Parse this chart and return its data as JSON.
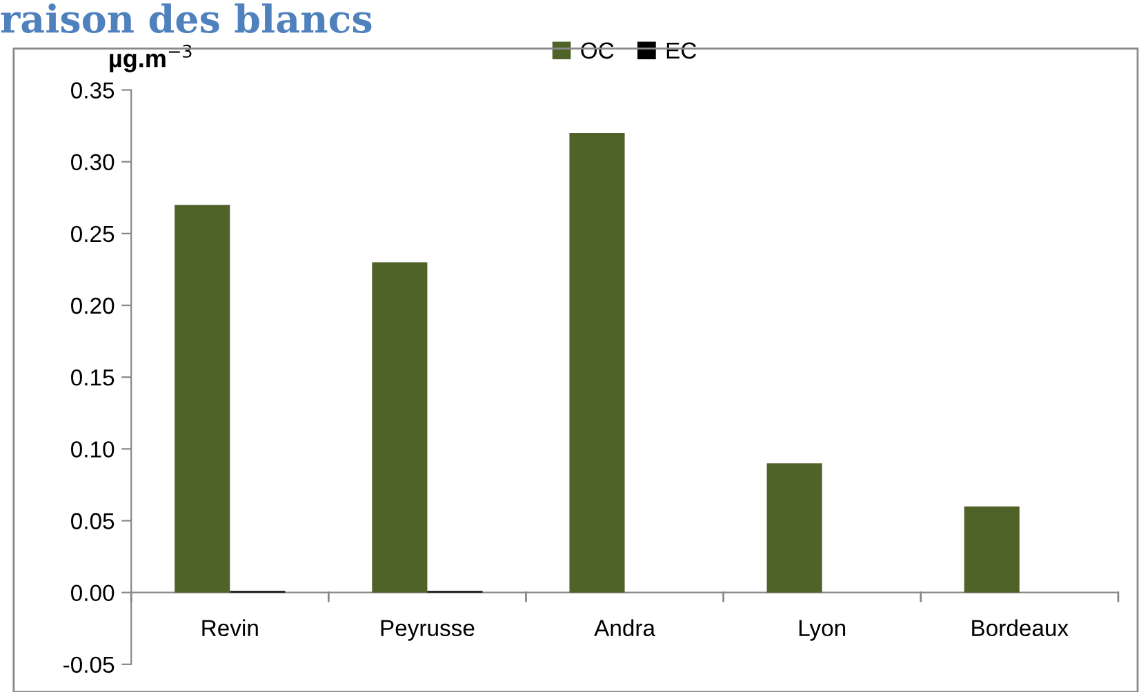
{
  "chart_data": {
    "type": "bar",
    "title": "raison des blancs",
    "ylabel": "µg.m$^{−3}$",
    "categories": [
      "Revin",
      "Peyrusse",
      "Andra",
      "Lyon",
      "Bordeaux"
    ],
    "series": [
      {
        "name": "OC",
        "color": "#4f6228",
        "values": [
          0.27,
          0.23,
          0.32,
          0.09,
          0.06
        ]
      },
      {
        "name": "EC",
        "color": "#000000",
        "values": [
          0.001,
          0.001,
          0,
          0,
          0
        ]
      }
    ],
    "ylim": [
      -0.05,
      0.35
    ],
    "yticks": [
      {
        "value": -0.05,
        "label": "-0.05"
      },
      {
        "value": 0,
        "label": "0.00"
      },
      {
        "value": 0.05,
        "label": "0.05"
      },
      {
        "value": 0.1,
        "label": "0.10"
      },
      {
        "value": 0.15,
        "label": "0.15"
      },
      {
        "value": 0.2,
        "label": "0.20"
      },
      {
        "value": 0.25,
        "label": "0.25"
      },
      {
        "value": 0.3,
        "label": "0.30"
      },
      {
        "value": 0.35,
        "label": "0.35"
      }
    ],
    "grid": false,
    "legend": "top"
  }
}
